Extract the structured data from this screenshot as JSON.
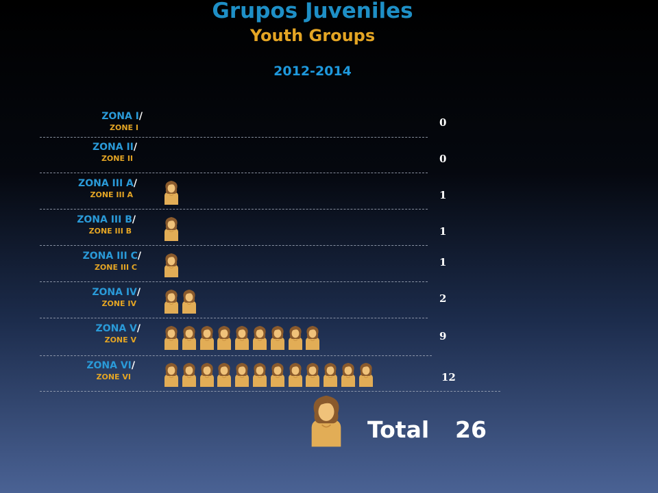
{
  "title": "Grupos Juveniles",
  "subtitle": "Youth Groups",
  "period": "2012-2014",
  "total": {
    "label": "Total",
    "value": "26"
  },
  "chart_data": {
    "type": "bar",
    "categories": [
      "ZONA I",
      "ZONA II",
      "ZONA III A",
      "ZONA III B",
      "ZONA III C",
      "ZONA IV",
      "ZONA V",
      "ZONA VI"
    ],
    "categories_en": [
      "ZONE I",
      "ZONE II",
      "ZONE III A",
      "ZONE III B",
      "ZONE III C",
      "ZONE IV",
      "ZONE V",
      "ZONE VI"
    ],
    "slash": "/",
    "values": [
      0,
      0,
      1,
      1,
      1,
      2,
      9,
      12
    ],
    "value_labels": [
      "0",
      "0",
      "1",
      "1",
      "1",
      "2",
      "9",
      "12"
    ],
    "icon": "person-icon",
    "colors": {
      "spanish_label": "#2a9ad8",
      "english_label": "#e4a524",
      "icon_body": "#e2ad56",
      "icon_hair": "#8a5a2c"
    }
  }
}
